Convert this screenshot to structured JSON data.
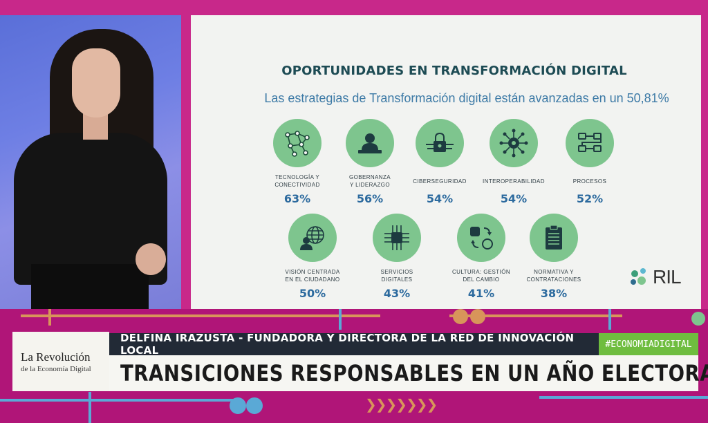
{
  "slide": {
    "title": "OPORTUNIDADES EN TRANSFORMACIÓN DIGITAL",
    "subtitle": "Las estrategias de Transformación digital están avanzadas en un 50,81%",
    "items": [
      {
        "icon": "network-nodes-icon",
        "label_line1": "TECNOLOGÍA Y",
        "label_line2": "CONECTIVIDAD",
        "value": "63%"
      },
      {
        "icon": "leader-at-desk-icon",
        "label_line1": "GOBERNANZA",
        "label_line2": "Y LIDERAZGO",
        "value": "56%"
      },
      {
        "icon": "padlock-circuit-icon",
        "label_line1": "CIBERSEGURIDAD",
        "label_line2": "",
        "value": "54%"
      },
      {
        "icon": "gear-network-icon",
        "label_line1": "INTEROPERABILIDAD",
        "label_line2": "",
        "value": "54%"
      },
      {
        "icon": "process-flow-icon",
        "label_line1": "PROCESOS",
        "label_line2": "",
        "value": "52%"
      },
      {
        "icon": "citizen-globe-icon",
        "label_line1": "VISIÓN CENTRADA",
        "label_line2": "EN EL CIUDADANO",
        "value": "50%"
      },
      {
        "icon": "chip-circuit-icon",
        "label_line1": "SERVICIOS",
        "label_line2": "DIGITALES",
        "value": "43%"
      },
      {
        "icon": "change-cycle-icon",
        "label_line1": "CULTURA: GESTIÓN",
        "label_line2": "DEL CAMBIO",
        "value": "41%"
      },
      {
        "icon": "clipboard-icon",
        "label_line1": "NORMATIVA Y",
        "label_line2": "CONTRATACIONES",
        "value": "38%"
      }
    ],
    "logo_text": "RIL",
    "circle_color": "#7ec58e",
    "title_color": "#1d4b54",
    "value_color": "#2c6a9e"
  },
  "lower_third": {
    "brand_line1": "La Revolución",
    "brand_line2": "de la Economía Digital",
    "name": "DELFINA IRAZUSTA - FUNDADORA Y DIRECTORA DE LA RED DE INNOVACIÓN LOCAL",
    "hashtag": "#ECONOMIADIGITAL",
    "headline": "TRANSICIONES RESPONSABLES EN UN AÑO ELECTORAL",
    "name_bar_color": "#222a36",
    "hashtag_color": "#6fbd3f"
  },
  "frame_color": "#c8288a"
}
